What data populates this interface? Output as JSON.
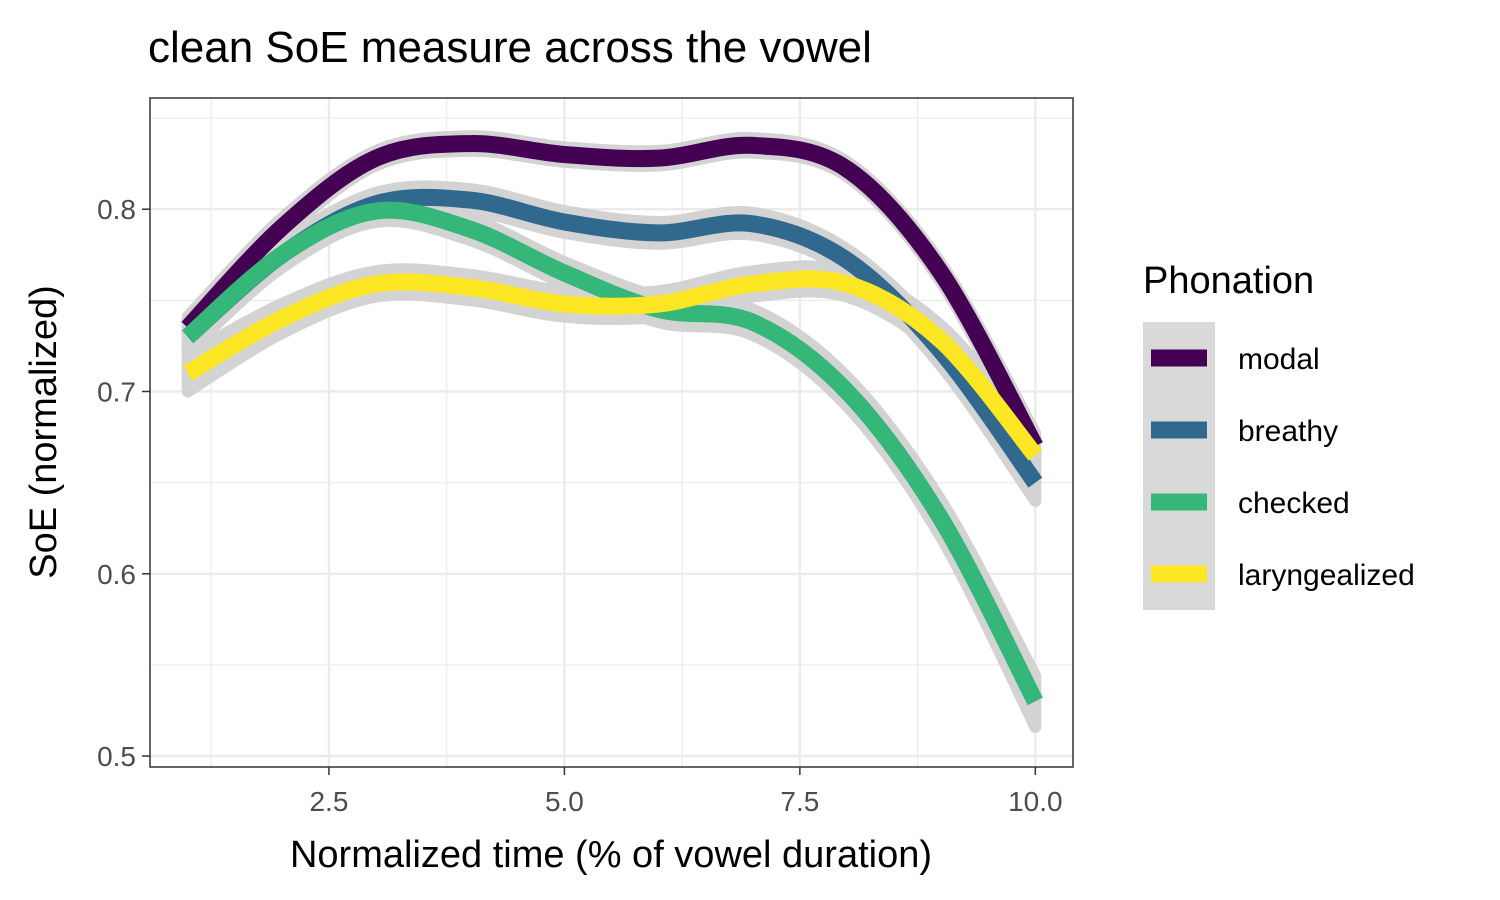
{
  "chart_data": {
    "type": "line",
    "title": "clean SoE measure across the vowel",
    "xlabel": "Normalized time (% of vowel duration)",
    "ylabel": "SoE (normalized)",
    "xlim": [
      0.6,
      10.4
    ],
    "ylim": [
      0.494,
      0.861
    ],
    "x_ticks": [
      2.5,
      5.0,
      7.5,
      10.0
    ],
    "x_tick_labels": [
      "2.5",
      "5.0",
      "7.5",
      "10.0"
    ],
    "x_minor": [
      1.25,
      3.75,
      6.25,
      8.75
    ],
    "y_ticks": [
      0.5,
      0.6,
      0.7,
      0.8
    ],
    "y_tick_labels": [
      "0.5",
      "0.6",
      "0.7",
      "0.8"
    ],
    "y_minor": [
      0.55,
      0.65,
      0.75,
      0.85
    ],
    "grid": true,
    "legend": {
      "title": "Phonation",
      "position": "right"
    },
    "ribbon_color": "#d3d3d3",
    "series": [
      {
        "name": "modal",
        "color": "#440154",
        "x": [
          1,
          2,
          3,
          4,
          5,
          6,
          7,
          8,
          9,
          10
        ],
        "y": [
          0.735,
          0.79,
          0.828,
          0.836,
          0.83,
          0.828,
          0.835,
          0.822,
          0.765,
          0.67
        ],
        "se": [
          0.006,
          0.005,
          0.004,
          0.004,
          0.004,
          0.004,
          0.004,
          0.004,
          0.005,
          0.007
        ]
      },
      {
        "name": "breathy",
        "color": "#31688e",
        "x": [
          1,
          2,
          3,
          4,
          5,
          6,
          7,
          8,
          9,
          10
        ],
        "y": [
          0.73,
          0.775,
          0.803,
          0.805,
          0.793,
          0.787,
          0.792,
          0.772,
          0.722,
          0.65
        ],
        "se": [
          0.008,
          0.006,
          0.006,
          0.006,
          0.006,
          0.006,
          0.006,
          0.006,
          0.008,
          0.01
        ]
      },
      {
        "name": "checked",
        "color": "#35b779",
        "x": [
          1,
          2,
          3,
          4,
          5,
          6,
          7,
          8,
          9,
          10
        ],
        "y": [
          0.73,
          0.775,
          0.799,
          0.789,
          0.765,
          0.745,
          0.738,
          0.7,
          0.63,
          0.53
        ],
        "se": [
          0.008,
          0.007,
          0.006,
          0.006,
          0.006,
          0.007,
          0.007,
          0.008,
          0.01,
          0.014
        ]
      },
      {
        "name": "laryngealized",
        "color": "#fde725",
        "x": [
          1,
          2,
          3,
          4,
          5,
          6,
          7,
          8,
          9,
          10
        ],
        "y": [
          0.71,
          0.74,
          0.759,
          0.757,
          0.748,
          0.748,
          0.759,
          0.759,
          0.728,
          0.665
        ],
        "se": [
          0.01,
          0.008,
          0.007,
          0.007,
          0.007,
          0.007,
          0.007,
          0.007,
          0.008,
          0.01
        ]
      }
    ]
  }
}
